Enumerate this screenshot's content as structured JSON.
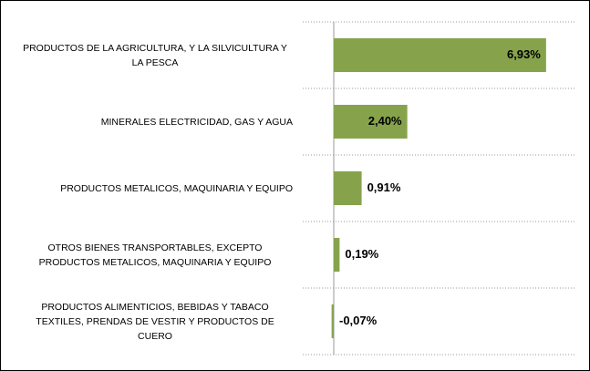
{
  "chart_data": {
    "type": "bar",
    "orientation": "horizontal",
    "categories": [
      "PRODUCTOS DE LA AGRICULTURA, Y LA SILVICULTURA Y LA PESCA",
      "MINERALES ELECTRICIDAD, GAS Y AGUA",
      "PRODUCTOS METALICOS, MAQUINARIA Y EQUIPO",
      "OTROS BIENES TRANSPORTABLES, EXCEPTO PRODUCTOS METALICOS, MAQUINARIA Y EQUIPO",
      "PRODUCTOS ALIMENTICIOS, BEBIDAS Y TABACO TEXTILES, PRENDAS DE VESTIR Y PRODUCTOS DE CUERO"
    ],
    "values": [
      6.93,
      2.4,
      0.91,
      0.19,
      -0.07
    ],
    "value_labels": [
      "6,93%",
      "2,40%",
      "0,91%",
      "0,19%",
      "-0,07%"
    ],
    "color": "#86a34c"
  }
}
